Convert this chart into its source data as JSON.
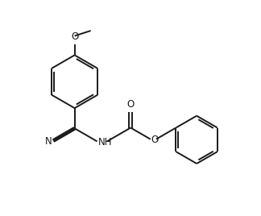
{
  "bg_color": "#ffffff",
  "line_color": "#1a1a1a",
  "line_width": 1.4,
  "font_size": 8.5,
  "fig_width": 3.24,
  "fig_height": 2.68,
  "dpi": 100,
  "xlim": [
    0,
    10
  ],
  "ylim": [
    0,
    8.27
  ]
}
